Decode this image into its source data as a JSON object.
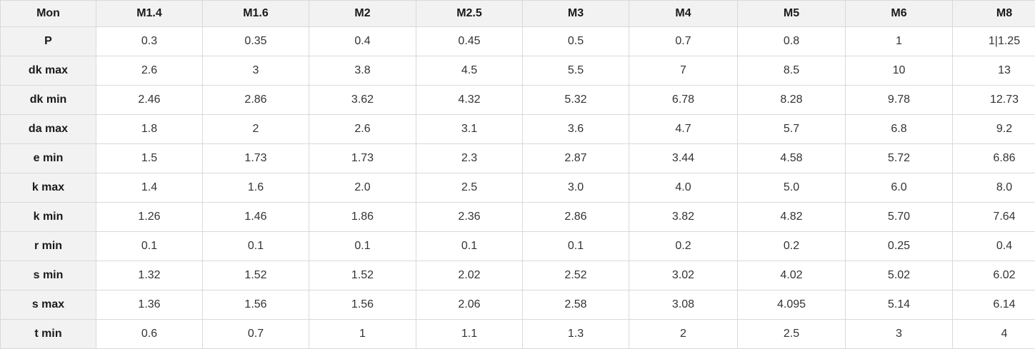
{
  "colors": {
    "header_bg": "#f2f2f2",
    "border": "#d9d9d9",
    "label_text": "#1a1a1a",
    "value_text": "#333333",
    "cell_bg": "#ffffff"
  },
  "chart_data": {
    "type": "table",
    "title": "",
    "header": [
      "Mon",
      "M1.4",
      "M1.6",
      "M2",
      "M2.5",
      "M3",
      "M4",
      "M5",
      "M6",
      "M8"
    ],
    "rows": [
      {
        "label": "P",
        "values": [
          "0.3",
          "0.35",
          "0.4",
          "0.45",
          "0.5",
          "0.7",
          "0.8",
          "1",
          "1|1.25"
        ]
      },
      {
        "label": "dk max",
        "values": [
          "2.6",
          "3",
          "3.8",
          "4.5",
          "5.5",
          "7",
          "8.5",
          "10",
          "13"
        ]
      },
      {
        "label": "dk min",
        "values": [
          "2.46",
          "2.86",
          "3.62",
          "4.32",
          "5.32",
          "6.78",
          "8.28",
          "9.78",
          "12.73"
        ]
      },
      {
        "label": "da max",
        "values": [
          "1.8",
          "2",
          "2.6",
          "3.1",
          "3.6",
          "4.7",
          "5.7",
          "6.8",
          "9.2"
        ]
      },
      {
        "label": "e min",
        "values": [
          "1.5",
          "1.73",
          "1.73",
          "2.3",
          "2.87",
          "3.44",
          "4.58",
          "5.72",
          "6.86"
        ]
      },
      {
        "label": "k max",
        "values": [
          "1.4",
          "1.6",
          "2.0",
          "2.5",
          "3.0",
          "4.0",
          "5.0",
          "6.0",
          "8.0"
        ]
      },
      {
        "label": "k min",
        "values": [
          "1.26",
          "1.46",
          "1.86",
          "2.36",
          "2.86",
          "3.82",
          "4.82",
          "5.70",
          "7.64"
        ]
      },
      {
        "label": "r min",
        "values": [
          "0.1",
          "0.1",
          "0.1",
          "0.1",
          "0.1",
          "0.2",
          "0.2",
          "0.25",
          "0.4"
        ]
      },
      {
        "label": "s min",
        "values": [
          "1.32",
          "1.52",
          "1.52",
          "2.02",
          "2.52",
          "3.02",
          "4.02",
          "5.02",
          "6.02"
        ]
      },
      {
        "label": "s max",
        "values": [
          "1.36",
          "1.56",
          "1.56",
          "2.06",
          "2.58",
          "3.08",
          "4.095",
          "5.14",
          "6.14"
        ]
      },
      {
        "label": "t min",
        "values": [
          "0.6",
          "0.7",
          "1",
          "1.1",
          "1.3",
          "2",
          "2.5",
          "3",
          "4"
        ]
      }
    ]
  }
}
